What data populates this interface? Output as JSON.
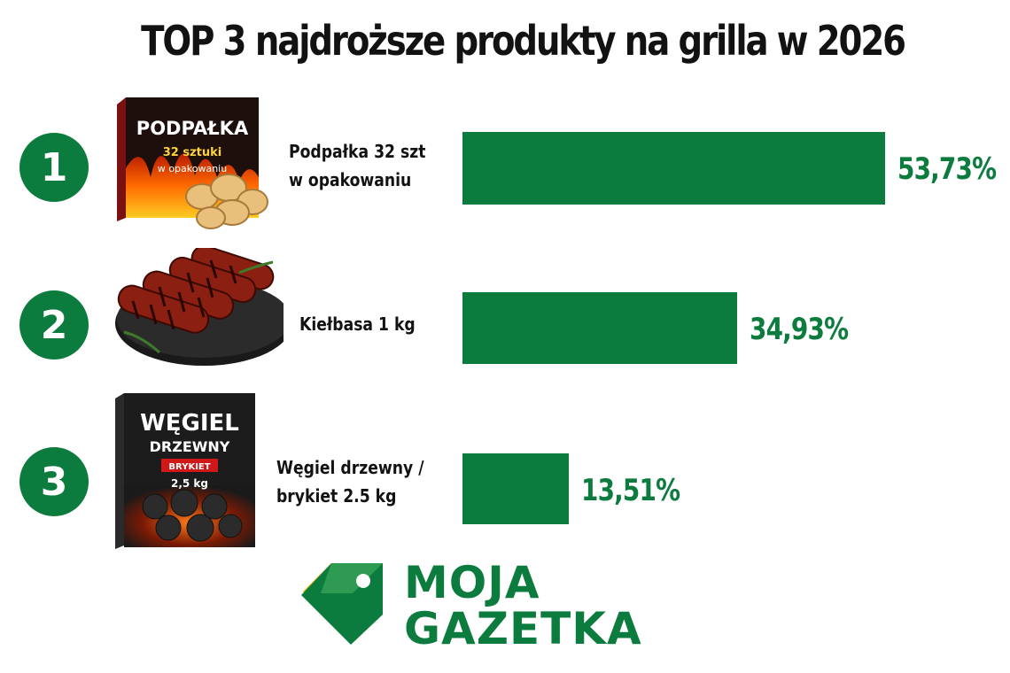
{
  "chart_data": {
    "type": "bar",
    "orientation": "horizontal",
    "title": "TOP 3 najdroższe produkty na grilla w 2026",
    "categories": [
      "Podpałka 32 szt w opakowaniu",
      "Kiełbasa 1 kg",
      "Węgiel drzewny / brykiet 2.5 kg"
    ],
    "values": [
      53.73,
      34.93,
      13.51
    ],
    "value_labels": [
      "53,73%",
      "34,93%",
      "13,51%"
    ],
    "xlim": [
      0,
      60
    ],
    "grid": false,
    "legend": "none"
  },
  "ranks": [
    "1",
    "2",
    "3"
  ],
  "label_lines": [
    [
      "Podpałka 32 szt",
      "w opakowaniu"
    ],
    [
      "Kiełbasa 1 kg"
    ],
    [
      "Węgiel drzewny /",
      "brykiet 2.5 kg"
    ]
  ],
  "product_images": [
    {
      "icon": "firelighter-box-icon",
      "box_title": "PODPAŁKA",
      "box_line1": "32 sztuki",
      "box_line2": "w opakowaniu"
    },
    {
      "icon": "grilled-sausages-icon"
    },
    {
      "icon": "charcoal-bag-icon",
      "box_title": "WĘGIEL",
      "box_line1": "DRZEWNY",
      "box_badge": "BRYKIET",
      "box_line2": "2,5 kg"
    }
  ],
  "logo": {
    "icon": "price-tag-icon",
    "line1": "MOJA",
    "line2": "GAZETKA"
  },
  "colors": {
    "accent": "#0c7b3e",
    "title": "#121212",
    "logo_yellow": "#f2b705"
  }
}
